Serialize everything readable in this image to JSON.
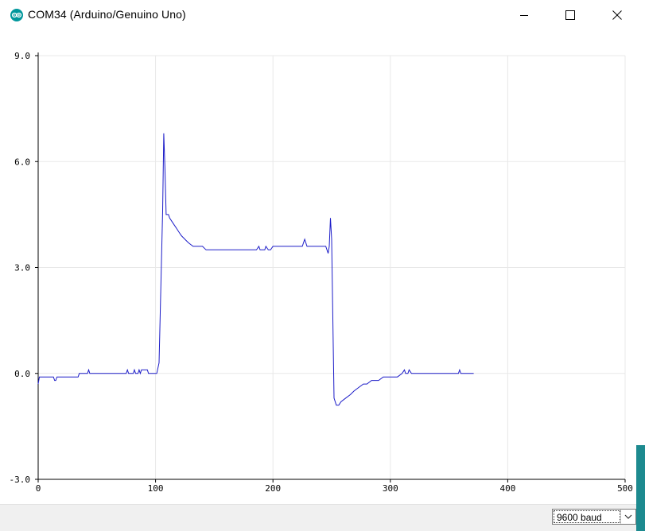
{
  "window": {
    "title": "COM34 (Arduino/Genuino Uno)",
    "logo_icon": "arduino-logo-icon",
    "controls": [
      "minimize-icon",
      "maximize-icon",
      "close-icon"
    ]
  },
  "baud": {
    "selected": "9600 baud"
  },
  "colors": {
    "line": "#1c1cc8",
    "grid": "#e8e8e8",
    "accent": "#00979c"
  },
  "chart_data": {
    "type": "line",
    "title": "",
    "xlabel": "",
    "ylabel": "",
    "xlim": [
      0,
      500
    ],
    "ylim": [
      -3,
      9
    ],
    "x_ticks": [
      "0",
      "100",
      "200",
      "300",
      "400",
      "500"
    ],
    "y_ticks": [
      "9.0",
      "6.0",
      "3.0",
      "0.0",
      "-3.0"
    ],
    "grid": true,
    "series": [
      {
        "points": [
          [
            0,
            -0.3
          ],
          [
            1,
            -0.1
          ],
          [
            5,
            -0.1
          ],
          [
            13,
            -0.1
          ],
          [
            14,
            -0.2
          ],
          [
            15,
            -0.2
          ],
          [
            16,
            -0.1
          ],
          [
            22,
            -0.1
          ],
          [
            34,
            -0.1
          ],
          [
            35,
            0
          ],
          [
            42,
            0
          ],
          [
            43,
            0.1
          ],
          [
            44,
            0
          ],
          [
            75,
            0
          ],
          [
            76,
            0.1
          ],
          [
            77,
            0
          ],
          [
            81,
            0
          ],
          [
            82,
            0.1
          ],
          [
            83,
            0
          ],
          [
            85,
            0
          ],
          [
            86,
            0.1
          ],
          [
            87,
            0
          ],
          [
            88,
            0.1
          ],
          [
            93,
            0.1
          ],
          [
            94,
            0
          ],
          [
            101,
            0
          ],
          [
            103,
            0.3
          ],
          [
            106,
            4.6
          ],
          [
            107,
            6.8
          ],
          [
            108,
            5.8
          ],
          [
            109,
            4.5
          ],
          [
            111,
            4.5
          ],
          [
            112,
            4.4
          ],
          [
            114,
            4.3
          ],
          [
            116,
            4.2
          ],
          [
            118,
            4.1
          ],
          [
            120,
            4.0
          ],
          [
            122,
            3.9
          ],
          [
            125,
            3.8
          ],
          [
            128,
            3.7
          ],
          [
            132,
            3.6
          ],
          [
            140,
            3.6
          ],
          [
            143,
            3.5
          ],
          [
            150,
            3.5
          ],
          [
            186,
            3.5
          ],
          [
            188,
            3.6
          ],
          [
            189,
            3.5
          ],
          [
            193,
            3.5
          ],
          [
            194,
            3.6
          ],
          [
            196,
            3.5
          ],
          [
            198,
            3.5
          ],
          [
            200,
            3.6
          ],
          [
            225,
            3.6
          ],
          [
            227,
            3.8
          ],
          [
            229,
            3.6
          ],
          [
            245,
            3.6
          ],
          [
            247,
            3.4
          ],
          [
            248,
            3.6
          ],
          [
            249,
            4.4
          ],
          [
            250,
            3.8
          ],
          [
            252,
            -0.7
          ],
          [
            254,
            -0.9
          ],
          [
            256,
            -0.9
          ],
          [
            258,
            -0.8
          ],
          [
            262,
            -0.7
          ],
          [
            266,
            -0.6
          ],
          [
            269,
            -0.5
          ],
          [
            273,
            -0.4
          ],
          [
            277,
            -0.3
          ],
          [
            280,
            -0.3
          ],
          [
            284,
            -0.2
          ],
          [
            290,
            -0.2
          ],
          [
            294,
            -0.1
          ],
          [
            306,
            -0.1
          ],
          [
            310,
            0
          ],
          [
            312,
            0.1
          ],
          [
            313,
            0
          ],
          [
            315,
            0
          ],
          [
            316,
            0.1
          ],
          [
            318,
            0
          ],
          [
            320,
            0
          ],
          [
            358,
            0
          ],
          [
            359,
            0.1
          ],
          [
            360,
            0
          ],
          [
            371,
            0
          ]
        ]
      }
    ]
  }
}
